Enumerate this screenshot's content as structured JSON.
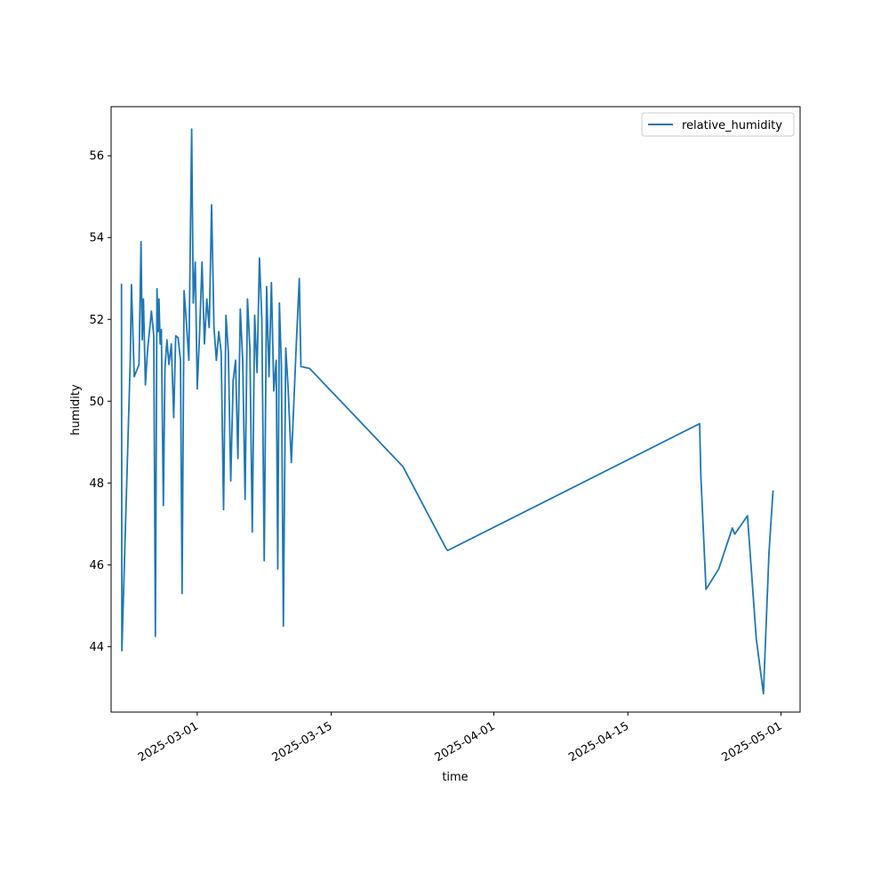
{
  "chart_data": {
    "type": "line",
    "xlabel": "time",
    "ylabel": "humidity",
    "x_type": "date",
    "xlim": [
      "2025-02-20T00:00",
      "2025-05-03T00:00"
    ],
    "ylim": [
      42.4,
      57.2
    ],
    "x_ticks": [
      "2025-03-01",
      "2025-03-15",
      "2025-04-01",
      "2025-04-15",
      "2025-05-01"
    ],
    "y_ticks": [
      44,
      46,
      48,
      50,
      52,
      54,
      56
    ],
    "grid": false,
    "legend": {
      "position": "top-right"
    },
    "series": [
      {
        "name": "relative_humidity",
        "color": "#1f77b4",
        "points": [
          [
            "2025-02-21T02:00",
            52.85
          ],
          [
            "2025-02-21T03:00",
            43.9
          ],
          [
            "2025-02-22T00:00",
            51.0
          ],
          [
            "2025-02-22T03:00",
            52.85
          ],
          [
            "2025-02-22T10:00",
            50.6
          ],
          [
            "2025-02-22T22:00",
            50.9
          ],
          [
            "2025-02-23T03:00",
            53.9
          ],
          [
            "2025-02-23T06:00",
            51.5
          ],
          [
            "2025-02-23T09:00",
            52.5
          ],
          [
            "2025-02-23T14:00",
            50.4
          ],
          [
            "2025-02-23T19:00",
            51.2
          ],
          [
            "2025-02-24T05:00",
            52.2
          ],
          [
            "2025-02-24T11:00",
            51.6
          ],
          [
            "2025-02-24T15:00",
            44.25
          ],
          [
            "2025-02-24T19:00",
            52.75
          ],
          [
            "2025-02-24T22:00",
            51.7
          ],
          [
            "2025-02-25T00:00",
            52.5
          ],
          [
            "2025-02-25T03:00",
            51.4
          ],
          [
            "2025-02-25T06:00",
            51.75
          ],
          [
            "2025-02-25T11:00",
            47.45
          ],
          [
            "2025-02-25T15:00",
            50.8
          ],
          [
            "2025-02-25T20:00",
            51.5
          ],
          [
            "2025-02-26T01:00",
            50.9
          ],
          [
            "2025-02-26T07:00",
            51.4
          ],
          [
            "2025-02-26T13:00",
            49.6
          ],
          [
            "2025-02-26T18:00",
            51.6
          ],
          [
            "2025-02-27T00:00",
            51.55
          ],
          [
            "2025-02-27T06:00",
            51.0
          ],
          [
            "2025-02-27T10:00",
            45.3
          ],
          [
            "2025-02-27T15:00",
            52.7
          ],
          [
            "2025-02-27T21:00",
            51.9
          ],
          [
            "2025-02-28T03:00",
            51.0
          ],
          [
            "2025-02-28T10:00",
            56.65
          ],
          [
            "2025-02-28T14:00",
            52.4
          ],
          [
            "2025-02-28T19:00",
            53.4
          ],
          [
            "2025-03-01T00:00",
            50.3
          ],
          [
            "2025-03-01T06:00",
            51.7
          ],
          [
            "2025-03-01T12:00",
            53.4
          ],
          [
            "2025-03-01T18:00",
            51.4
          ],
          [
            "2025-03-02T00:00",
            52.5
          ],
          [
            "2025-03-02T06:00",
            51.8
          ],
          [
            "2025-03-02T12:00",
            54.8
          ],
          [
            "2025-03-02T18:00",
            51.8
          ],
          [
            "2025-03-03T00:00",
            51.0
          ],
          [
            "2025-03-03T06:00",
            51.7
          ],
          [
            "2025-03-03T12:00",
            51.2
          ],
          [
            "2025-03-03T18:00",
            47.35
          ],
          [
            "2025-03-04T00:00",
            52.1
          ],
          [
            "2025-03-04T06:00",
            51.2
          ],
          [
            "2025-03-04T12:00",
            48.05
          ],
          [
            "2025-03-04T18:00",
            50.5
          ],
          [
            "2025-03-05T00:00",
            51.0
          ],
          [
            "2025-03-05T06:00",
            48.6
          ],
          [
            "2025-03-05T12:00",
            52.25
          ],
          [
            "2025-03-05T18:00",
            51.0
          ],
          [
            "2025-03-06T00:00",
            47.6
          ],
          [
            "2025-03-06T06:00",
            52.5
          ],
          [
            "2025-03-06T12:00",
            51.3
          ],
          [
            "2025-03-06T18:00",
            46.8
          ],
          [
            "2025-03-07T00:00",
            52.1
          ],
          [
            "2025-03-07T06:00",
            50.7
          ],
          [
            "2025-03-07T12:00",
            53.5
          ],
          [
            "2025-03-07T18:00",
            52.0
          ],
          [
            "2025-03-08T00:00",
            46.1
          ],
          [
            "2025-03-08T06:00",
            52.8
          ],
          [
            "2025-03-08T12:00",
            50.6
          ],
          [
            "2025-03-08T18:00",
            52.9
          ],
          [
            "2025-03-09T00:00",
            50.25
          ],
          [
            "2025-03-09T06:00",
            51.0
          ],
          [
            "2025-03-09T10:00",
            45.9
          ],
          [
            "2025-03-09T14:00",
            52.4
          ],
          [
            "2025-03-09T19:00",
            50.9
          ],
          [
            "2025-03-10T00:00",
            44.5
          ],
          [
            "2025-03-10T06:00",
            51.3
          ],
          [
            "2025-03-10T12:00",
            50.3
          ],
          [
            "2025-03-10T20:00",
            48.5
          ],
          [
            "2025-03-11T08:00",
            51.3
          ],
          [
            "2025-03-11T16:00",
            53.0
          ],
          [
            "2025-03-11T20:00",
            50.85
          ],
          [
            "2025-03-12T18:00",
            50.8
          ],
          [
            "2025-03-22T12:00",
            48.4
          ],
          [
            "2025-03-27T00:00",
            46.4
          ],
          [
            "2025-03-27T04:00",
            46.35
          ],
          [
            "2025-04-22T12:00",
            49.45
          ],
          [
            "2025-04-22T15:00",
            48.2
          ],
          [
            "2025-04-23T04:00",
            45.4
          ],
          [
            "2025-04-24T12:00",
            45.9
          ],
          [
            "2025-04-25T22:00",
            46.9
          ],
          [
            "2025-04-26T04:00",
            46.75
          ],
          [
            "2025-04-27T12:00",
            47.2
          ],
          [
            "2025-04-28T10:00",
            44.2
          ],
          [
            "2025-04-29T04:00",
            42.85
          ],
          [
            "2025-04-29T18:00",
            46.3
          ],
          [
            "2025-04-30T04:00",
            47.8
          ]
        ]
      }
    ]
  }
}
